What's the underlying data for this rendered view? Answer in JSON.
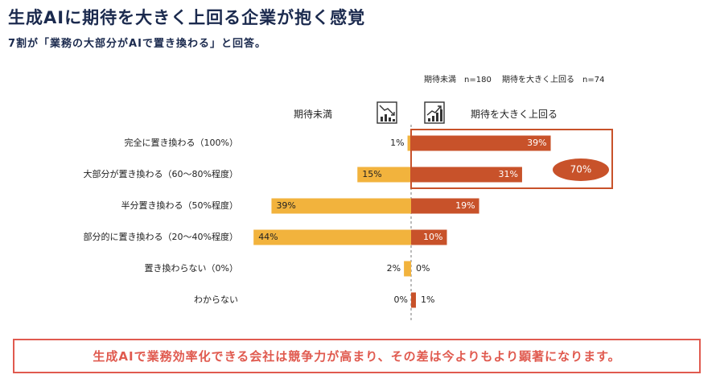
{
  "header": {
    "title": "生成AIに期待を大きく上回る企業が抱く感覚",
    "subtitle": "7割が「業務の大部分がAIで置き換わる」と回答。"
  },
  "legend": {
    "group1": "期待未満　n=180",
    "group2": "期待を大きく上回る　n=74"
  },
  "columns": {
    "left": "期待未満",
    "right": "期待を大きく上回る"
  },
  "icons": {
    "left": "declining-chart-icon",
    "right": "rising-chart-icon"
  },
  "chart_data": {
    "type": "bar",
    "orientation": "diverging-horizontal",
    "categories": [
      "完全に置き換わる（100%）",
      "大部分が置き換わる（60～80%程度）",
      "半分置き換わる（50%程度）",
      "部分的に置き換わる（20～40%程度）",
      "置き換わらない（0%）",
      "わからない"
    ],
    "series": [
      {
        "name": "期待未満",
        "values": [
          1,
          15,
          39,
          44,
          2,
          0
        ],
        "labels": [
          "1%",
          "15%",
          "39%",
          "44%",
          "2%",
          "0%"
        ],
        "color": "#f2b33d",
        "direction": "left"
      },
      {
        "name": "期待を大きく上回る",
        "values": [
          39,
          31,
          19,
          10,
          0,
          1
        ],
        "labels": [
          "39%",
          "31%",
          "19%",
          "10%",
          "0%",
          "1%"
        ],
        "color": "#c8522a",
        "direction": "right"
      }
    ],
    "annotation": {
      "text": "70%",
      "applies_to": [
        "完全に置き換わる（100%）",
        "大部分が置き換わる（60～80%程度）"
      ],
      "color": "#c8522a"
    }
  },
  "callout": {
    "text": "生成AIで業務効率化できる会社は競争力が高まり、その差は今よりもより顕著になります。"
  }
}
